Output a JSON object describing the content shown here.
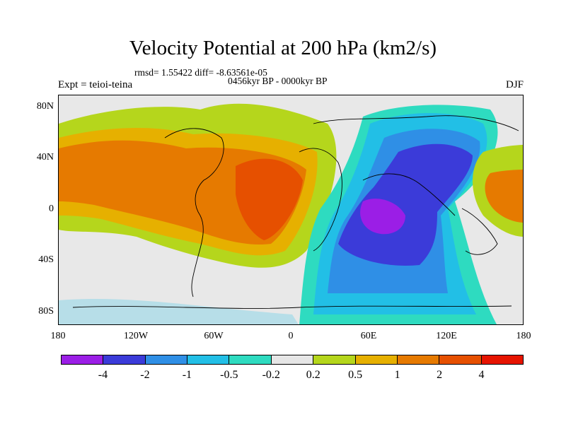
{
  "title": "Velocity Potential at 200 hPa (km2/s)",
  "stats": "rmsd= 1.55422 diff= -8.63561e-05",
  "period": "0456kyr BP - 0000kyr BP",
  "experiment": "Expt = teioi-teina",
  "season": "DJF",
  "y_ticks": [
    "80N",
    "40N",
    "0",
    "40S",
    "80S"
  ],
  "x_ticks": [
    "180",
    "120W",
    "60W",
    "0",
    "60E",
    "120E",
    "180"
  ],
  "colorbar": {
    "colors": [
      "#9b1ee6",
      "#3b3bd9",
      "#2f8fe6",
      "#22bfe6",
      "#2edbc0",
      "#e6e6e6",
      "#b5d61c",
      "#e6b000",
      "#e67a00",
      "#e65000",
      "#e61400"
    ],
    "labels": [
      "-4",
      "-2",
      "-1",
      "-0.5",
      "-0.2",
      "0.2",
      "0.5",
      "1",
      "2",
      "4"
    ]
  }
}
